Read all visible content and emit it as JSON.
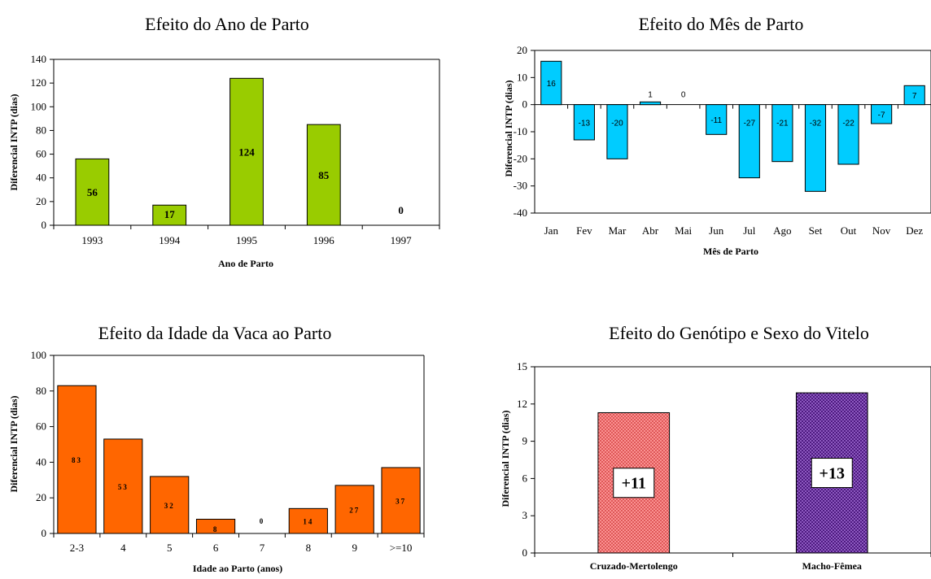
{
  "chart_data": [
    {
      "type": "bar",
      "title": "Efeito do Ano de Parto",
      "xlabel": "Ano de Parto",
      "ylabel": "Diferencial INTP (dias)",
      "categories": [
        "1993",
        "1994",
        "1995",
        "1996",
        "1997"
      ],
      "values": [
        56,
        17,
        124,
        85,
        0
      ],
      "data_labels": [
        "56",
        "17",
        "124",
        "85",
        "0"
      ],
      "ylim": [
        0,
        140
      ],
      "yticks": [
        0,
        20,
        40,
        60,
        80,
        100,
        120,
        140
      ],
      "bar_color": "#99cc00",
      "grid": false
    },
    {
      "type": "bar",
      "title": "Efeito do Mês de Parto",
      "xlabel": "Mês de Parto",
      "ylabel": "Diferencial INTP (dias)",
      "categories": [
        "Jan",
        "Fev",
        "Mar",
        "Abr",
        "Mai",
        "Jun",
        "Jul",
        "Ago",
        "Set",
        "Out",
        "Nov",
        "Dez"
      ],
      "values": [
        16,
        -13,
        -20,
        1,
        0,
        -11,
        -27,
        -21,
        -32,
        -22,
        -7,
        7
      ],
      "data_labels": [
        "16",
        "-13",
        "-20",
        "1",
        "0",
        "-11",
        "-27",
        "-21",
        "-32",
        "-22",
        "-7",
        "7"
      ],
      "ylim": [
        -40,
        20
      ],
      "yticks": [
        -40,
        -30,
        -20,
        -10,
        0,
        10,
        20
      ],
      "bar_color": "#00ccff",
      "grid": false
    },
    {
      "type": "bar",
      "title": "Efeito da Idade da Vaca ao Parto",
      "xlabel": "Idade ao Parto (anos)",
      "ylabel": "Diferencial INTP (dias)",
      "categories": [
        "2-3",
        "4",
        "5",
        "6",
        "7",
        "8",
        "9",
        ">=10"
      ],
      "values": [
        83,
        53,
        32,
        8,
        0,
        14,
        27,
        37
      ],
      "data_labels": [
        "83",
        "53",
        "32",
        "8",
        "0",
        "14",
        "27",
        "37"
      ],
      "ylim": [
        0,
        100
      ],
      "yticks": [
        0,
        20,
        40,
        60,
        80,
        100
      ],
      "bar_color": "#ff6600",
      "grid": false
    },
    {
      "type": "bar",
      "title": "Efeito do Genótipo e Sexo do Vitelo",
      "ylabel": "Diferencial INTP (dias)",
      "categories": [
        "Cruzado-Mertolengo",
        "Macho-Fêmea"
      ],
      "values": [
        11.3,
        12.9
      ],
      "data_labels": [
        "+11",
        "+13"
      ],
      "ylim": [
        0,
        15
      ],
      "yticks": [
        0,
        3,
        6,
        9,
        12,
        15
      ],
      "bar_colors": [
        "#ff9999",
        "#9933cc"
      ],
      "pattern": "crosshatch",
      "grid": false
    }
  ]
}
